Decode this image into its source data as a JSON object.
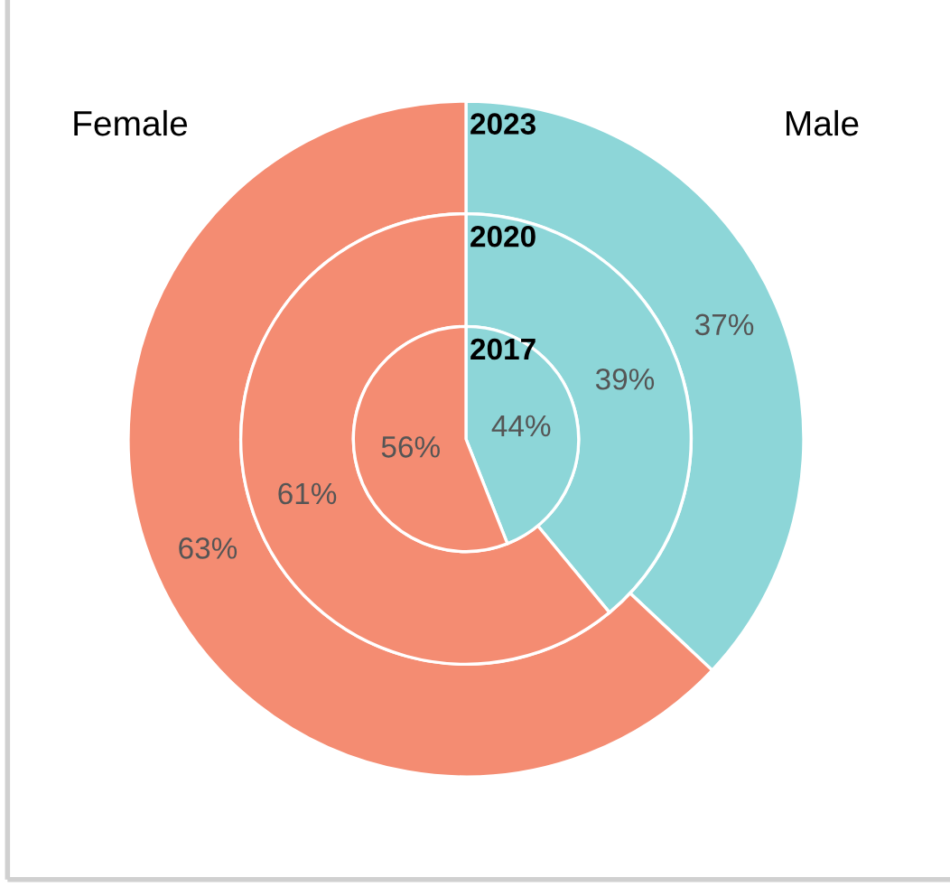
{
  "chart_data": {
    "type": "donut",
    "categories": [
      "Male",
      "Female"
    ],
    "colors": [
      "#8dd6d8",
      "#f48c72"
    ],
    "series": [
      {
        "name": "2023",
        "values": [
          37,
          63
        ],
        "value_labels": [
          "37%",
          "63%"
        ]
      },
      {
        "name": "2020",
        "values": [
          39,
          61
        ],
        "value_labels": [
          "39%",
          "61%"
        ]
      },
      {
        "name": "2017",
        "type": "pie",
        "values": [
          44,
          56
        ],
        "value_labels": [
          "44%",
          "56%"
        ]
      }
    ]
  }
}
